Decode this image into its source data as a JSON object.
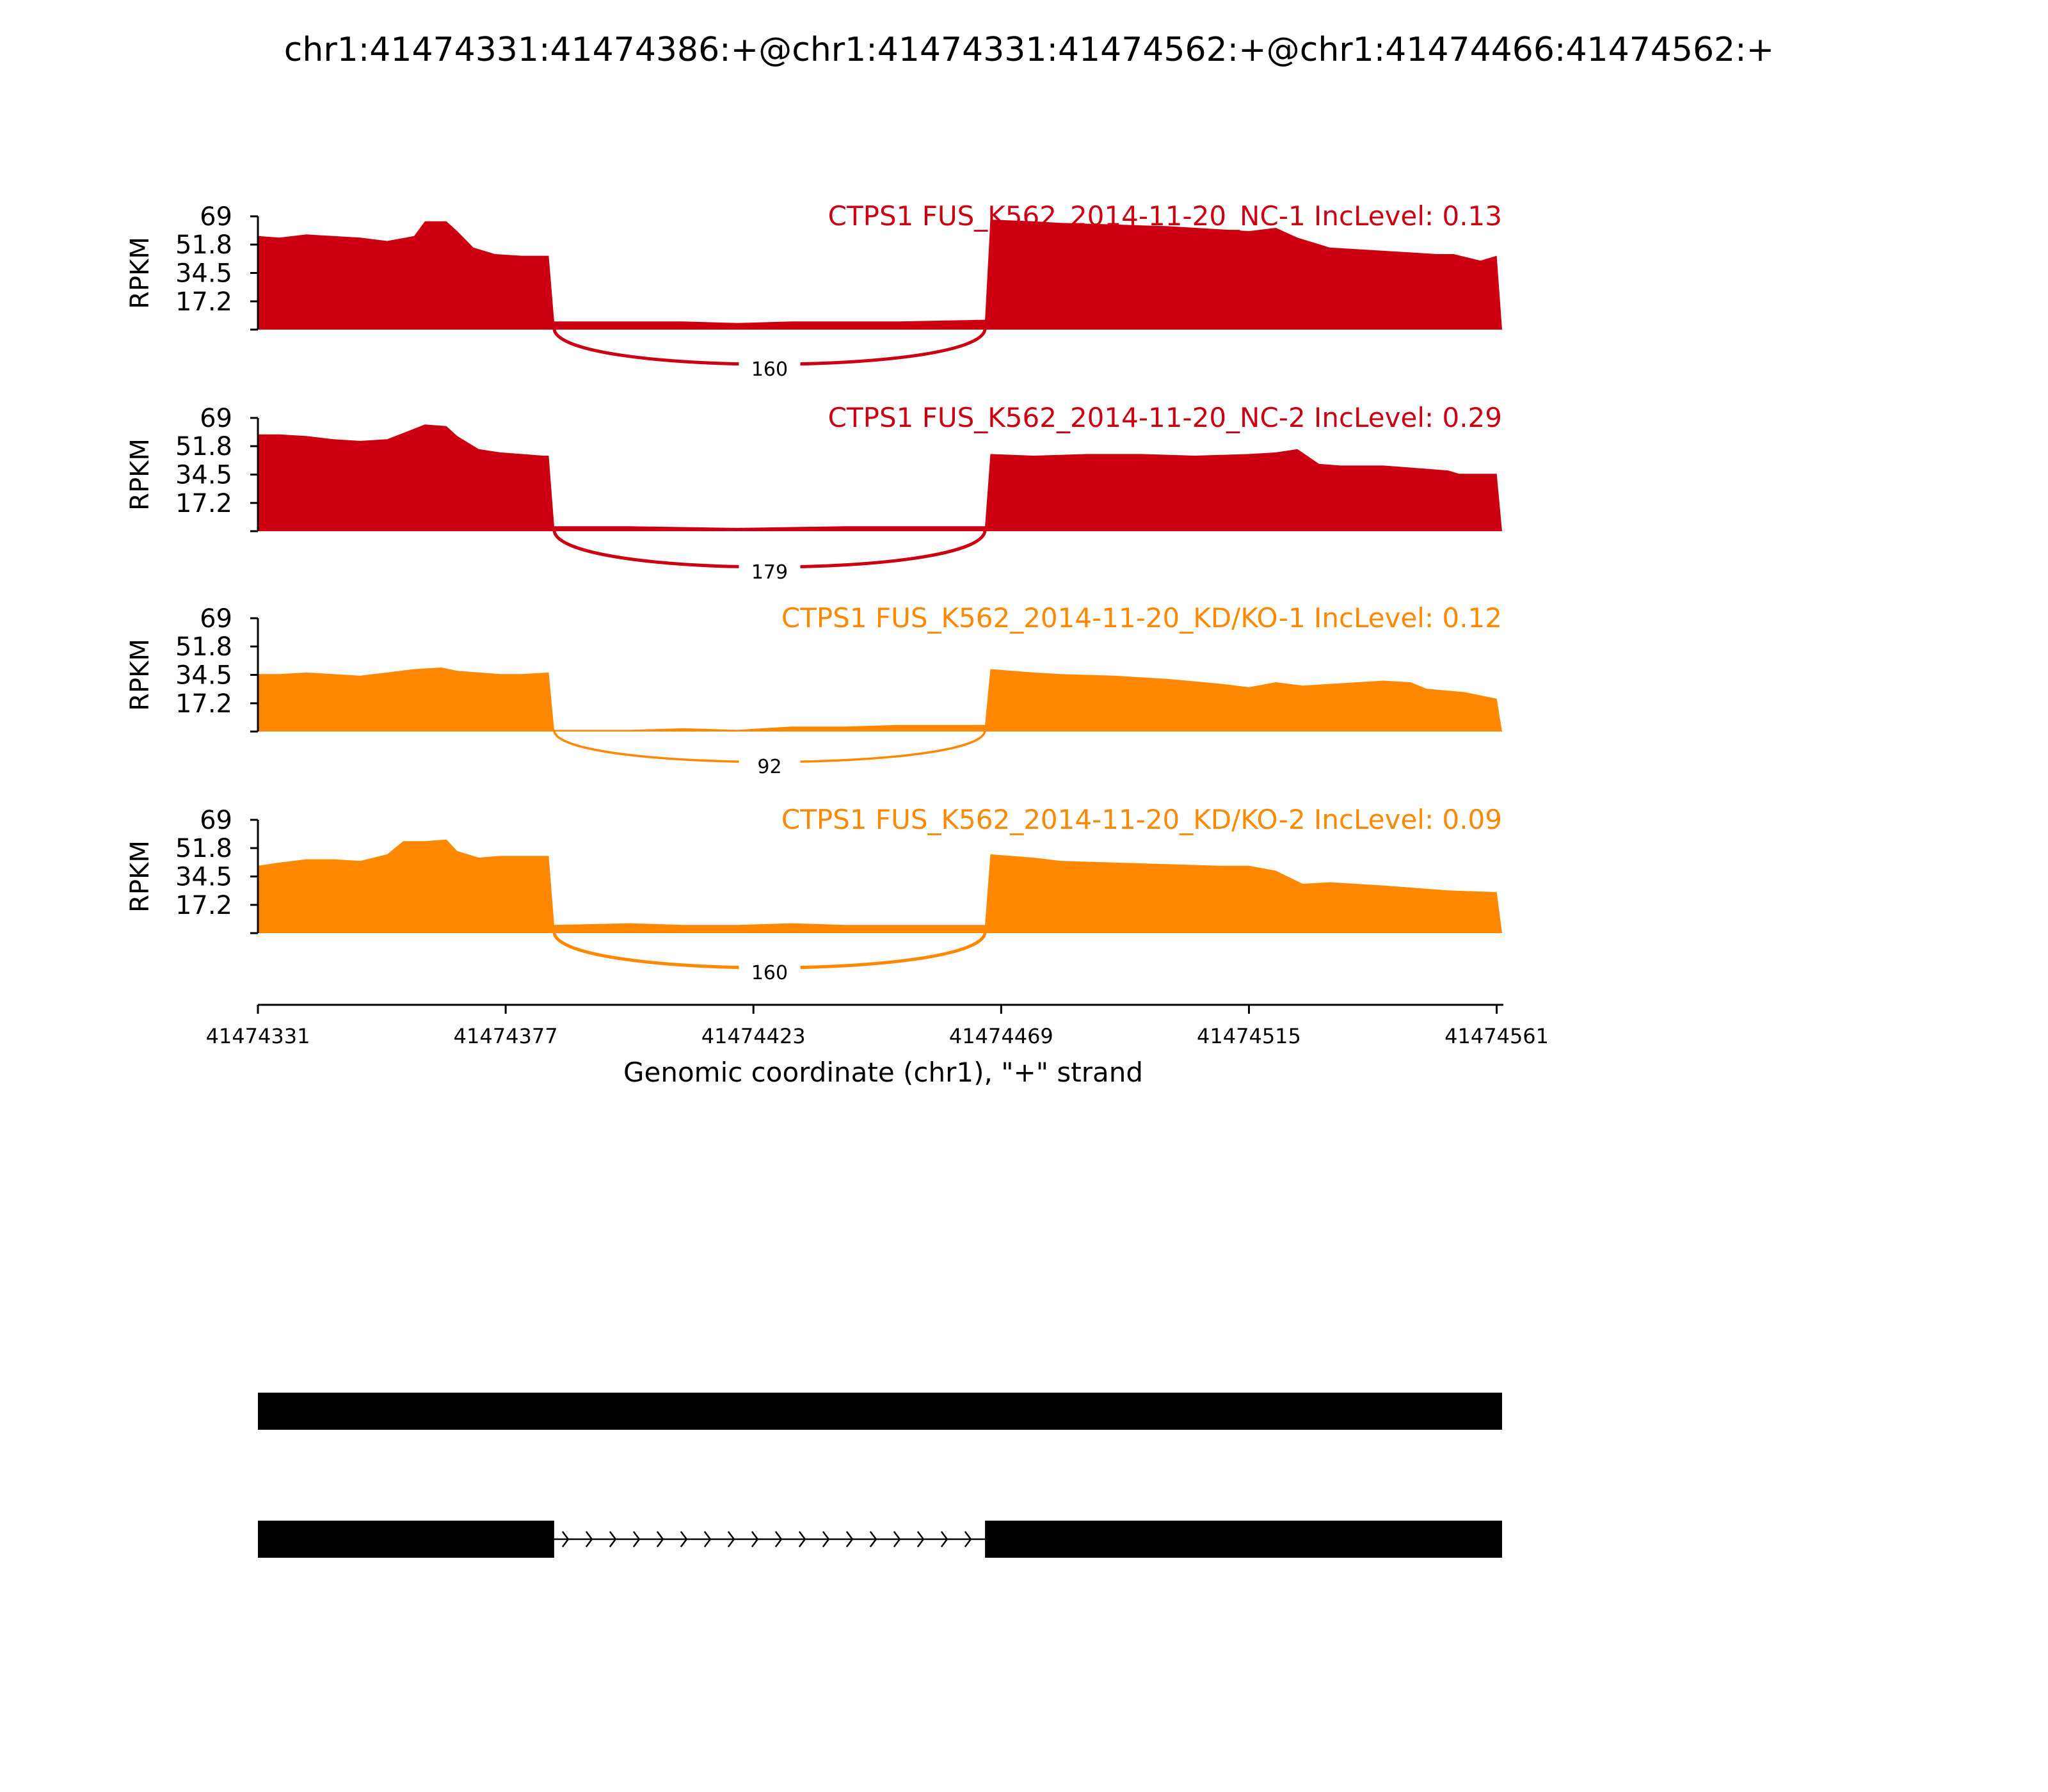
{
  "title": "chr1:41474331:41474386:+@chr1:41474331:41474562:+@chr1:41474466:41474562:+",
  "colors": {
    "nc": "#CC0011",
    "kd": "#FF8800",
    "axis": "#000000",
    "gene": "#000000"
  },
  "chart_data": {
    "type": "area",
    "title": "chr1:41474331:41474386:+@chr1:41474331:41474562:+@chr1:41474466:41474562:+",
    "xlabel": "Genomic coordinate (chr1), \"+\" strand",
    "ylabel": "RPKM",
    "xlim": [
      41474331,
      41474562
    ],
    "ylim": [
      0,
      69
    ],
    "x_ticks": [
      41474331,
      41474377,
      41474423,
      41474469,
      41474515,
      41474561
    ],
    "x_tick_labels": [
      "41474331",
      "41474377",
      "41474423",
      "41474469",
      "41474515",
      "41474561"
    ],
    "y_ticks": [
      17.2,
      34.5,
      51.8,
      69
    ],
    "y_tick_labels": [
      "17.2",
      "34.5",
      "51.8",
      "69"
    ],
    "series": [
      {
        "name": "CTPS1 FUS_K562_2014-11-20_NC-1 IncLevel: 0.13",
        "group": "nc",
        "coverage": [
          [
            41474331,
            57
          ],
          [
            41474335,
            56
          ],
          [
            41474340,
            58
          ],
          [
            41474345,
            57
          ],
          [
            41474350,
            56
          ],
          [
            41474355,
            54
          ],
          [
            41474360,
            57
          ],
          [
            41474362,
            66
          ],
          [
            41474366,
            66
          ],
          [
            41474368,
            60
          ],
          [
            41474371,
            50
          ],
          [
            41474375,
            46
          ],
          [
            41474380,
            45
          ],
          [
            41474384,
            45
          ],
          [
            41474385,
            45
          ],
          [
            41474386,
            5
          ],
          [
            41474390,
            5
          ],
          [
            41474400,
            5
          ],
          [
            41474410,
            5
          ],
          [
            41474420,
            4
          ],
          [
            41474430,
            5
          ],
          [
            41474440,
            5
          ],
          [
            41474450,
            5
          ],
          [
            41474466,
            6
          ],
          [
            41474467,
            67
          ],
          [
            41474475,
            66
          ],
          [
            41474480,
            65
          ],
          [
            41474490,
            64
          ],
          [
            41474500,
            63
          ],
          [
            41474510,
            61
          ],
          [
            41474515,
            60
          ],
          [
            41474520,
            62
          ],
          [
            41474524,
            56
          ],
          [
            41474530,
            50
          ],
          [
            41474540,
            48
          ],
          [
            41474545,
            47
          ],
          [
            41474550,
            46
          ],
          [
            41474553,
            46
          ],
          [
            41474558,
            42
          ],
          [
            41474561,
            45
          ],
          [
            41474562,
            0
          ]
        ],
        "junction": {
          "start": 41474386,
          "end": 41474466,
          "count": "160"
        }
      },
      {
        "name": "CTPS1 FUS_K562_2014-11-20_NC-2 IncLevel: 0.29",
        "group": "nc",
        "coverage": [
          [
            41474331,
            59
          ],
          [
            41474335,
            59
          ],
          [
            41474340,
            58
          ],
          [
            41474345,
            56
          ],
          [
            41474350,
            55
          ],
          [
            41474355,
            56
          ],
          [
            41474362,
            65
          ],
          [
            41474366,
            64
          ],
          [
            41474368,
            58
          ],
          [
            41474372,
            50
          ],
          [
            41474376,
            48
          ],
          [
            41474380,
            47
          ],
          [
            41474384,
            46
          ],
          [
            41474385,
            46
          ],
          [
            41474386,
            3
          ],
          [
            41474400,
            3
          ],
          [
            41474420,
            2
          ],
          [
            41474440,
            3
          ],
          [
            41474450,
            3
          ],
          [
            41474466,
            3
          ],
          [
            41474467,
            47
          ],
          [
            41474475,
            46
          ],
          [
            41474485,
            47
          ],
          [
            41474495,
            47
          ],
          [
            41474505,
            46
          ],
          [
            41474515,
            47
          ],
          [
            41474520,
            48
          ],
          [
            41474524,
            50
          ],
          [
            41474528,
            41
          ],
          [
            41474532,
            40
          ],
          [
            41474540,
            40
          ],
          [
            41474548,
            38
          ],
          [
            41474552,
            37
          ],
          [
            41474554,
            35
          ],
          [
            41474561,
            35
          ],
          [
            41474562,
            0
          ]
        ],
        "junction": {
          "start": 41474386,
          "end": 41474466,
          "count": "179"
        }
      },
      {
        "name": "CTPS1 FUS_K562_2014-11-20_KD/KO-1 IncLevel: 0.12",
        "group": "kd",
        "coverage": [
          [
            41474331,
            35
          ],
          [
            41474335,
            35
          ],
          [
            41474340,
            36
          ],
          [
            41474345,
            35
          ],
          [
            41474350,
            34
          ],
          [
            41474355,
            36
          ],
          [
            41474360,
            38
          ],
          [
            41474365,
            39
          ],
          [
            41474368,
            37
          ],
          [
            41474372,
            36
          ],
          [
            41474376,
            35
          ],
          [
            41474380,
            35
          ],
          [
            41474385,
            36
          ],
          [
            41474386,
            1
          ],
          [
            41474400,
            1
          ],
          [
            41474410,
            2
          ],
          [
            41474420,
            1
          ],
          [
            41474430,
            3
          ],
          [
            41474440,
            3
          ],
          [
            41474450,
            4
          ],
          [
            41474466,
            4
          ],
          [
            41474467,
            38
          ],
          [
            41474475,
            36
          ],
          [
            41474480,
            35
          ],
          [
            41474490,
            34
          ],
          [
            41474500,
            32
          ],
          [
            41474510,
            29
          ],
          [
            41474515,
            27
          ],
          [
            41474520,
            30
          ],
          [
            41474525,
            28
          ],
          [
            41474530,
            29
          ],
          [
            41474540,
            31
          ],
          [
            41474545,
            30
          ],
          [
            41474548,
            26
          ],
          [
            41474555,
            24
          ],
          [
            41474561,
            20
          ],
          [
            41474562,
            0
          ]
        ],
        "junction": {
          "start": 41474386,
          "end": 41474466,
          "count": "92"
        }
      },
      {
        "name": "CTPS1 FUS_K562_2014-11-20_KD/KO-2 IncLevel: 0.09",
        "group": "kd",
        "coverage": [
          [
            41474331,
            41
          ],
          [
            41474335,
            43
          ],
          [
            41474340,
            45
          ],
          [
            41474345,
            45
          ],
          [
            41474350,
            44
          ],
          [
            41474355,
            48
          ],
          [
            41474358,
            56
          ],
          [
            41474362,
            56
          ],
          [
            41474366,
            57
          ],
          [
            41474368,
            50
          ],
          [
            41474372,
            46
          ],
          [
            41474376,
            47
          ],
          [
            41474380,
            47
          ],
          [
            41474385,
            47
          ],
          [
            41474386,
            5
          ],
          [
            41474400,
            6
          ],
          [
            41474410,
            5
          ],
          [
            41474420,
            5
          ],
          [
            41474430,
            6
          ],
          [
            41474440,
            5
          ],
          [
            41474450,
            5
          ],
          [
            41474466,
            5
          ],
          [
            41474467,
            48
          ],
          [
            41474475,
            46
          ],
          [
            41474480,
            44
          ],
          [
            41474490,
            43
          ],
          [
            41474500,
            42
          ],
          [
            41474510,
            41
          ],
          [
            41474515,
            41
          ],
          [
            41474520,
            38
          ],
          [
            41474525,
            30
          ],
          [
            41474530,
            31
          ],
          [
            41474540,
            29
          ],
          [
            41474548,
            27
          ],
          [
            41474552,
            26
          ],
          [
            41474561,
            25
          ],
          [
            41474562,
            0
          ]
        ],
        "junction": {
          "start": 41474386,
          "end": 41474466,
          "count": "160"
        }
      }
    ],
    "transcripts": [
      {
        "exons": [
          [
            41474331,
            41474562
          ]
        ]
      },
      {
        "exons": [
          [
            41474331,
            41474386
          ],
          [
            41474466,
            41474562
          ]
        ]
      }
    ]
  }
}
